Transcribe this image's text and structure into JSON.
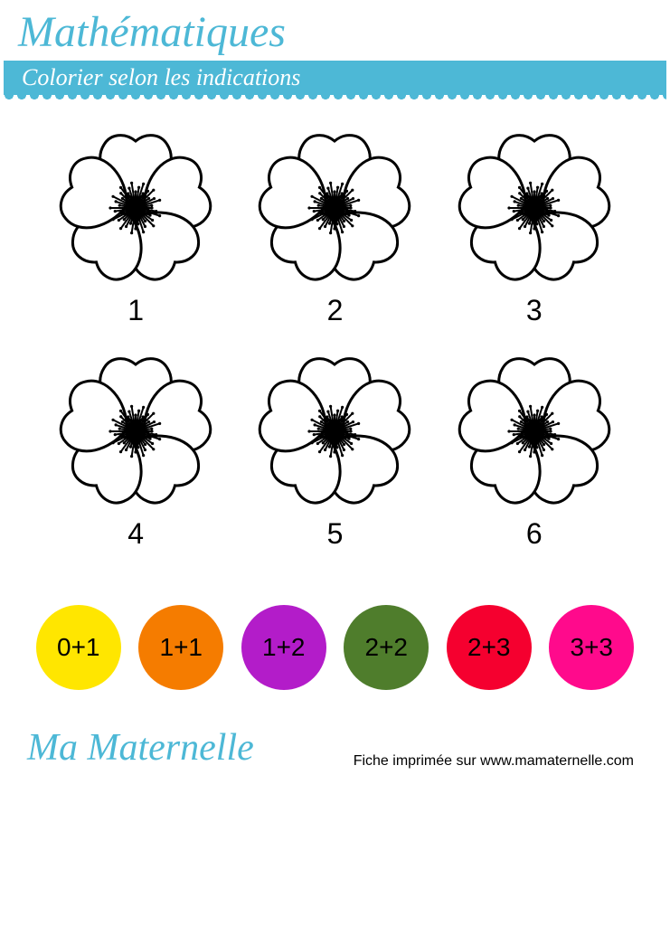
{
  "header": {
    "title": "Mathématiques",
    "instruction": "Colorier selon les indications",
    "title_color": "#4db8d6",
    "bar_bg": "#4db8d6",
    "bar_text_color": "#ffffff"
  },
  "flowers": {
    "outline_color": "#000000",
    "fill_color": "#ffffff",
    "number_fontsize": 32,
    "items": [
      {
        "label": "1"
      },
      {
        "label": "2"
      },
      {
        "label": "3"
      },
      {
        "label": "4"
      },
      {
        "label": "5"
      },
      {
        "label": "6"
      }
    ]
  },
  "legend": {
    "circle_diameter": 94,
    "label_fontsize": 28,
    "items": [
      {
        "expr": "0+1",
        "color": "#ffe600"
      },
      {
        "expr": "1+1",
        "color": "#f57c00"
      },
      {
        "expr": "1+2",
        "color": "#b31cc9"
      },
      {
        "expr": "2+2",
        "color": "#4f7d2c"
      },
      {
        "expr": "2+3",
        "color": "#f5002f"
      },
      {
        "expr": "3+3",
        "color": "#ff0a8c"
      }
    ]
  },
  "footer": {
    "brand": "Ma Maternelle",
    "print_note": "Fiche imprimée sur www.mamaternelle.com",
    "brand_color": "#4db8d6"
  }
}
